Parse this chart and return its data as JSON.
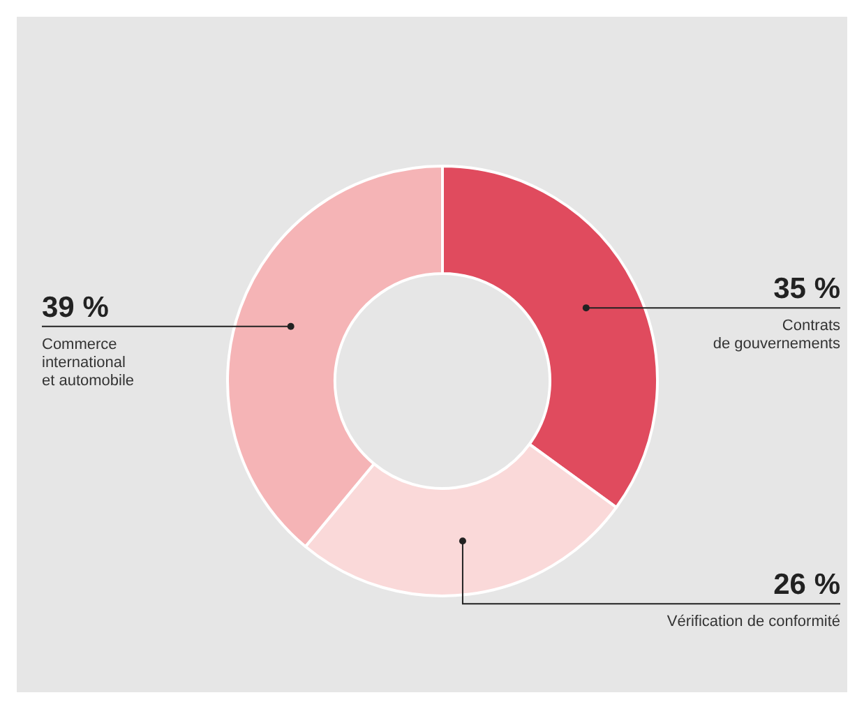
{
  "chart_data": {
    "type": "donut",
    "categories": [
      "Contrats\nde gouvernements",
      "Vérification de conformité",
      "Commerce\ninternational\net automobile"
    ],
    "values": [
      35,
      26,
      39
    ],
    "colors": [
      "#e04b5e",
      "#fad9d9",
      "#f5b4b6"
    ],
    "value_labels": [
      "35 %",
      "26 %",
      "39 %"
    ],
    "legend": false
  }
}
